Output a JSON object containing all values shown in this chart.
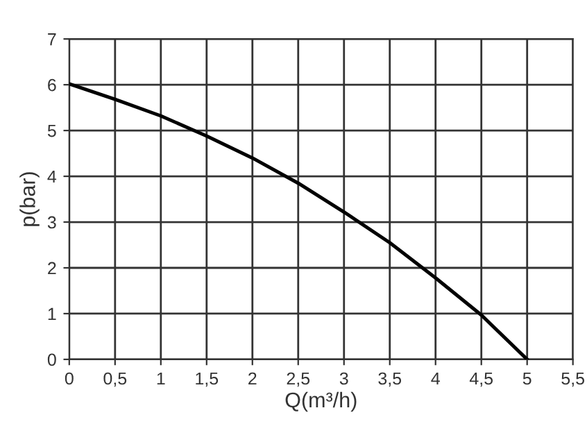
{
  "chart_data": {
    "type": "line",
    "xlabel": "Q(m³/h)",
    "ylabel": "p(bar)",
    "x": [
      0,
      0.5,
      1,
      1.5,
      2,
      2.5,
      3,
      3.5,
      4,
      4.5,
      5
    ],
    "series": [
      {
        "color": "#000000",
        "values": [
          6.02,
          5.68,
          5.32,
          4.88,
          4.4,
          3.85,
          3.22,
          2.55,
          1.78,
          0.97,
          0
        ]
      }
    ],
    "xlim": [
      0,
      5.5
    ],
    "ylim": [
      0,
      7
    ],
    "xticks": [
      0,
      {
        "value": 0.5,
        "label": "0,5"
      },
      1,
      {
        "value": 1.5,
        "label": "1,5"
      },
      2,
      {
        "value": 2.5,
        "label": "2,5"
      },
      3,
      {
        "value": 3.5,
        "label": "3,5"
      },
      4,
      {
        "value": 4.5,
        "label": "4,5"
      },
      5,
      {
        "value": 5.5,
        "label": "5,5"
      }
    ],
    "yticks": [
      0,
      1,
      2,
      3,
      4,
      5,
      6,
      7
    ],
    "grid": true,
    "marker": "none",
    "line_style": "solid"
  }
}
